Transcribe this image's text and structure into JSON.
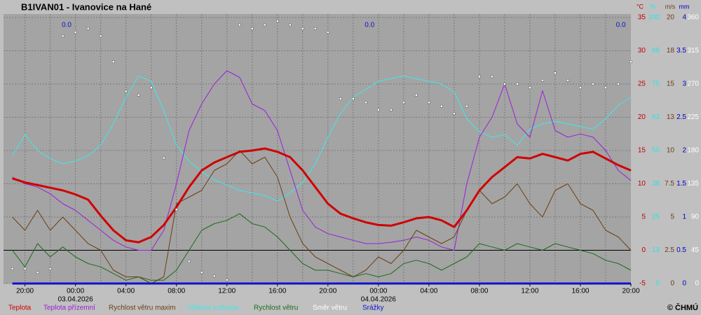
{
  "chart_data": {
    "type": "line",
    "title": "B1IVAN01 - Ivanovice na Hané",
    "credit": "© ČHMÚ",
    "x": [
      -5,
      -4,
      -3,
      -2,
      -1,
      0,
      1,
      2,
      3,
      4,
      5,
      6,
      7,
      8,
      9,
      10,
      11,
      12,
      13,
      14,
      15,
      16,
      17,
      18,
      19,
      20,
      21,
      22,
      23,
      24,
      25,
      26,
      27,
      28,
      29,
      30,
      31,
      32,
      33,
      34,
      35,
      36,
      37,
      38,
      39,
      40,
      41,
      42,
      43,
      44
    ],
    "xlim": [
      -5.7,
      44
    ],
    "xticks": [
      {
        "value": -4,
        "label": "20:00"
      },
      {
        "value": 0,
        "label": "00:00"
      },
      {
        "value": 4,
        "label": "04:00"
      },
      {
        "value": 8,
        "label": "08:00"
      },
      {
        "value": 12,
        "label": "12:00"
      },
      {
        "value": 16,
        "label": "16:00"
      },
      {
        "value": 20,
        "label": "20:00"
      },
      {
        "value": 24,
        "label": "00:00"
      },
      {
        "value": 28,
        "label": "04:00"
      },
      {
        "value": 32,
        "label": "08:00"
      },
      {
        "value": 36,
        "label": "12:00"
      },
      {
        "value": 40,
        "label": "16:00"
      },
      {
        "value": 44,
        "label": "20:00"
      }
    ],
    "xgrid": [
      -4,
      -2,
      0,
      2,
      4,
      6,
      8,
      10,
      12,
      14,
      16,
      18,
      20,
      22,
      24,
      26,
      28,
      30,
      32,
      34,
      36,
      38,
      40,
      42
    ],
    "date_labels": [
      {
        "value": 0,
        "label": "03.04.2026"
      },
      {
        "value": 24,
        "label": "04.04.2026"
      }
    ],
    "units": {
      "y": "°C",
      "y2": "%",
      "y3": "m/s",
      "y4": "mm"
    },
    "axis_colors": {
      "y": "#c00000",
      "y2": "#30e0e0",
      "y3": "#6b3e14",
      "y4": "#0000c8",
      "y5": "#ffffff"
    },
    "ylim": [
      -5,
      35
    ],
    "yticks": [
      -5,
      0,
      5,
      10,
      15,
      20,
      25,
      30,
      35
    ],
    "y2lim": [
      0,
      100
    ],
    "y2ticks": [
      0,
      {
        "value": 12.5,
        "label": "13"
      },
      25,
      {
        "value": 37.5,
        "label": "38"
      },
      50,
      {
        "value": 62.5,
        "label": "63"
      },
      75,
      {
        "value": 87.5,
        "label": "88"
      },
      100
    ],
    "y3lim": [
      0,
      20
    ],
    "y3ticks": [
      0,
      2.5,
      5,
      7.5,
      10,
      {
        "value": 12.5,
        "label": "13"
      },
      15,
      {
        "value": 17.5,
        "label": "18"
      },
      20
    ],
    "y4lim": [
      0,
      4
    ],
    "y4ticks": [
      0,
      0.5,
      1,
      1.5,
      2,
      2.5,
      3,
      3.5,
      4
    ],
    "y5lim": [
      0,
      360
    ],
    "y5ticks": [
      0,
      45,
      90,
      135,
      180,
      225,
      270,
      315,
      360
    ],
    "grid": true,
    "precip_labels": [
      {
        "x": -0.7,
        "value": 0,
        "label": "0.0"
      },
      {
        "x": 23.3,
        "value": 0,
        "label": "0.0"
      },
      {
        "x": 43.2,
        "value": 0,
        "label": "0.0"
      }
    ],
    "series": [
      {
        "name": "Teplota",
        "color": "#d00000",
        "axis": "y",
        "style": "line",
        "line_width": 3,
        "values": [
          10.8,
          10.2,
          9.8,
          9.4,
          9.0,
          8.4,
          7.6,
          5.2,
          3.0,
          1.5,
          1.2,
          2.0,
          3.8,
          6.5,
          9.5,
          12.0,
          13.2,
          14.0,
          14.8,
          15.0,
          15.3,
          14.8,
          14.0,
          12.0,
          9.5,
          7.0,
          5.5,
          4.8,
          4.2,
          3.8,
          3.7,
          4.2,
          4.8,
          5.0,
          4.5,
          3.5,
          6.0,
          9.0,
          11.0,
          12.5,
          14.0,
          13.8,
          14.5,
          14.0,
          13.5,
          14.5,
          14.8,
          13.8,
          12.8,
          12.0
        ]
      },
      {
        "name": "Teplota přízemní",
        "color": "#9a20d8",
        "axis": "y",
        "style": "line",
        "line_width": 1,
        "values": [
          11.0,
          10.0,
          9.5,
          8.5,
          7.0,
          6.0,
          4.5,
          3.0,
          1.5,
          0.5,
          0.0,
          0.0,
          3.0,
          10.0,
          18.0,
          22.0,
          25.0,
          27.0,
          26.0,
          22.0,
          21.0,
          18.0,
          12.0,
          6.0,
          3.5,
          2.5,
          2.0,
          1.5,
          1.0,
          1.0,
          1.2,
          1.5,
          2.0,
          1.5,
          0.5,
          0.0,
          10.0,
          17.0,
          20.0,
          25.0,
          19.0,
          17.0,
          24.0,
          18.0,
          17.0,
          17.5,
          17.0,
          15.0,
          12.0,
          10.5
        ]
      },
      {
        "name": "Rychlost větru maxim",
        "color": "#6b3e14",
        "axis": "y3",
        "style": "line",
        "line_width": 1,
        "values": [
          5,
          4,
          5.5,
          4,
          5,
          4,
          3,
          2.5,
          1,
          0.5,
          0.5,
          0,
          0.5,
          6,
          6.5,
          7,
          8.5,
          9,
          10,
          9,
          9.5,
          8,
          5,
          3,
          2,
          1.5,
          1,
          0.5,
          1,
          2,
          1.5,
          2.5,
          4,
          3.5,
          3,
          3.5,
          5.5,
          7,
          6,
          6.5,
          7.5,
          6,
          5,
          7,
          7.5,
          6,
          5.5,
          4,
          3.5,
          2.5
        ]
      },
      {
        "name": "Vlhkost vzduchu",
        "color": "#40e8e8",
        "axis": "y2",
        "style": "line",
        "line_width": 1,
        "values": [
          48,
          56,
          50,
          47,
          45,
          46,
          48,
          52,
          60,
          70,
          78,
          76,
          65,
          52,
          46,
          42,
          39,
          37,
          35,
          34,
          33,
          31,
          34,
          38,
          45,
          55,
          64,
          70,
          73,
          76,
          77,
          78,
          77,
          76,
          75,
          72,
          62,
          57,
          55,
          56,
          52,
          58,
          60,
          61,
          60,
          59,
          58,
          62,
          67,
          70
        ]
      },
      {
        "name": "Rychlost větru",
        "color": "#1a6b1a",
        "axis": "y3",
        "style": "line",
        "line_width": 1,
        "values": [
          2.5,
          1.25,
          3,
          2,
          2.75,
          2,
          1.5,
          1.25,
          0.75,
          0.25,
          0.5,
          0.25,
          0.25,
          1,
          2.5,
          4,
          4.5,
          4.75,
          5.25,
          4.5,
          4.25,
          3.5,
          2.5,
          1.5,
          1,
          1,
          0.75,
          0.5,
          0.75,
          0.5,
          0.75,
          1.5,
          1.75,
          1.5,
          1,
          1.5,
          2,
          3,
          2.75,
          2.5,
          3,
          2.75,
          2.5,
          3,
          2.75,
          2.5,
          2.25,
          1.75,
          1.5,
          1
        ]
      },
      {
        "name": "Směr větru",
        "color": "#ffffff",
        "axis": "y5",
        "style": "dots",
        "values": [
          20,
          20,
          15,
          20,
          335,
          340,
          345,
          335,
          300,
          260,
          255,
          265,
          170,
          100,
          30,
          15,
          10,
          5,
          350,
          345,
          350,
          355,
          350,
          345,
          345,
          340,
          250,
          250,
          245,
          235,
          235,
          245,
          255,
          245,
          240,
          230,
          240,
          280,
          280,
          270,
          270,
          265,
          275,
          285,
          275,
          265,
          270,
          265,
          270,
          300
        ]
      },
      {
        "name": "Srážky",
        "color": "#1010d0",
        "axis": "y4",
        "style": "line",
        "line_width": 3,
        "values": [
          0,
          0,
          0,
          0,
          0,
          0,
          0,
          0,
          0,
          0,
          0,
          0,
          0,
          0,
          0,
          0,
          0,
          0,
          0,
          0,
          0,
          0,
          0,
          0,
          0,
          0,
          0,
          0,
          0,
          0,
          0,
          0,
          0,
          0,
          0,
          0,
          0,
          0,
          0,
          0,
          0,
          0,
          0,
          0,
          0,
          0,
          0,
          0,
          0,
          0
        ]
      }
    ]
  }
}
